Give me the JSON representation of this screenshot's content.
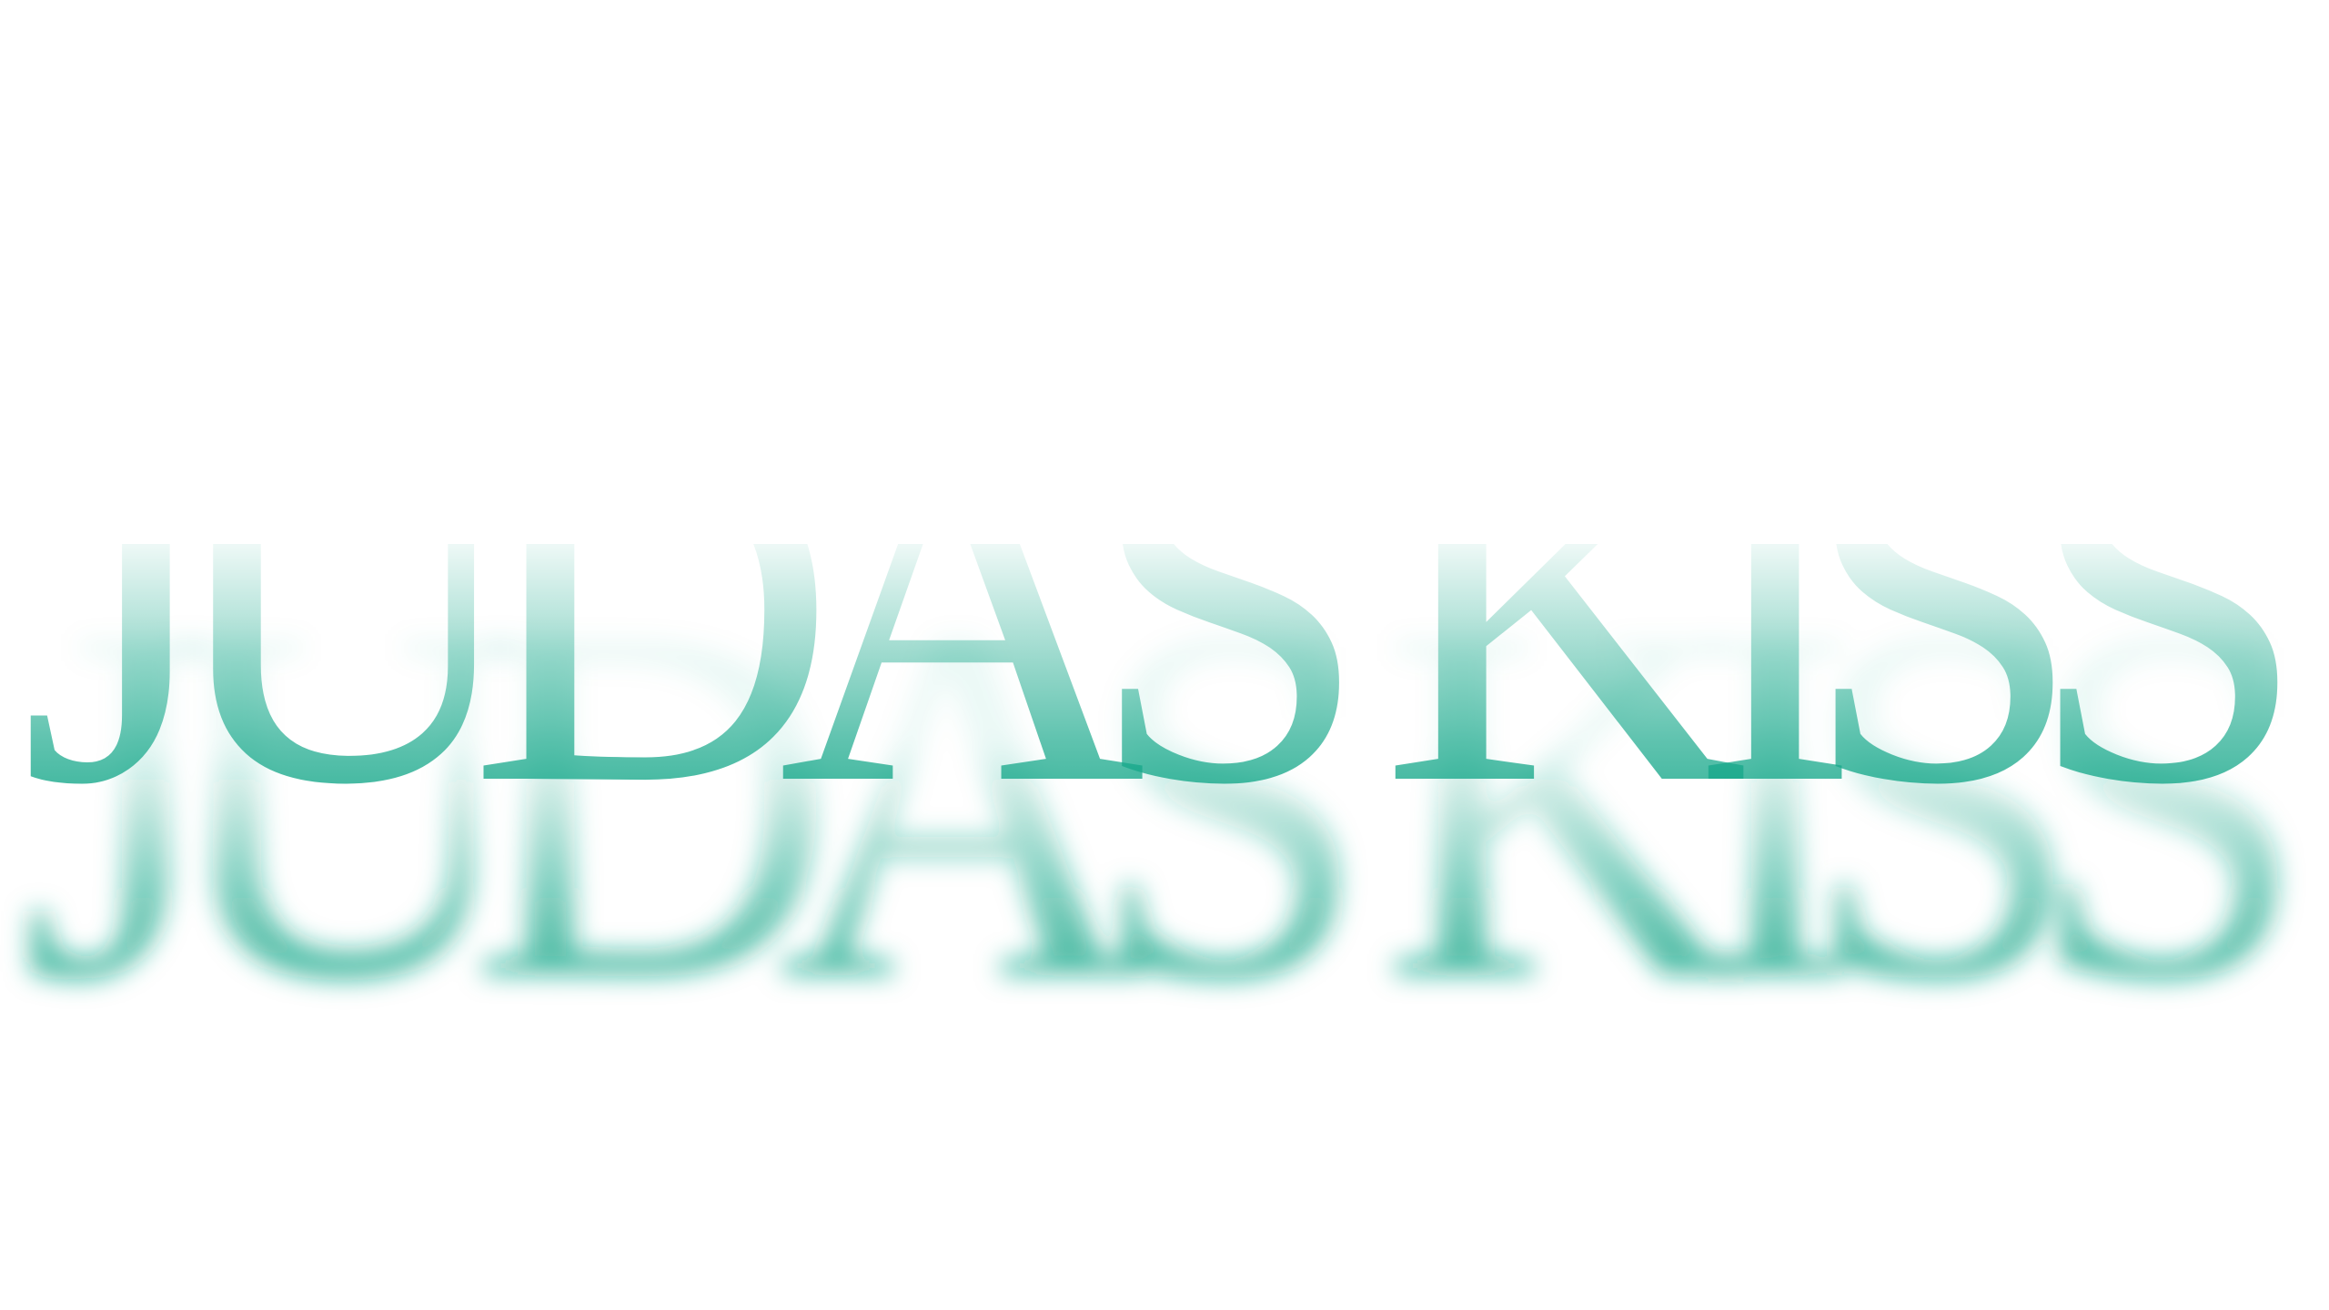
{
  "title": "JUDAS KISS"
}
